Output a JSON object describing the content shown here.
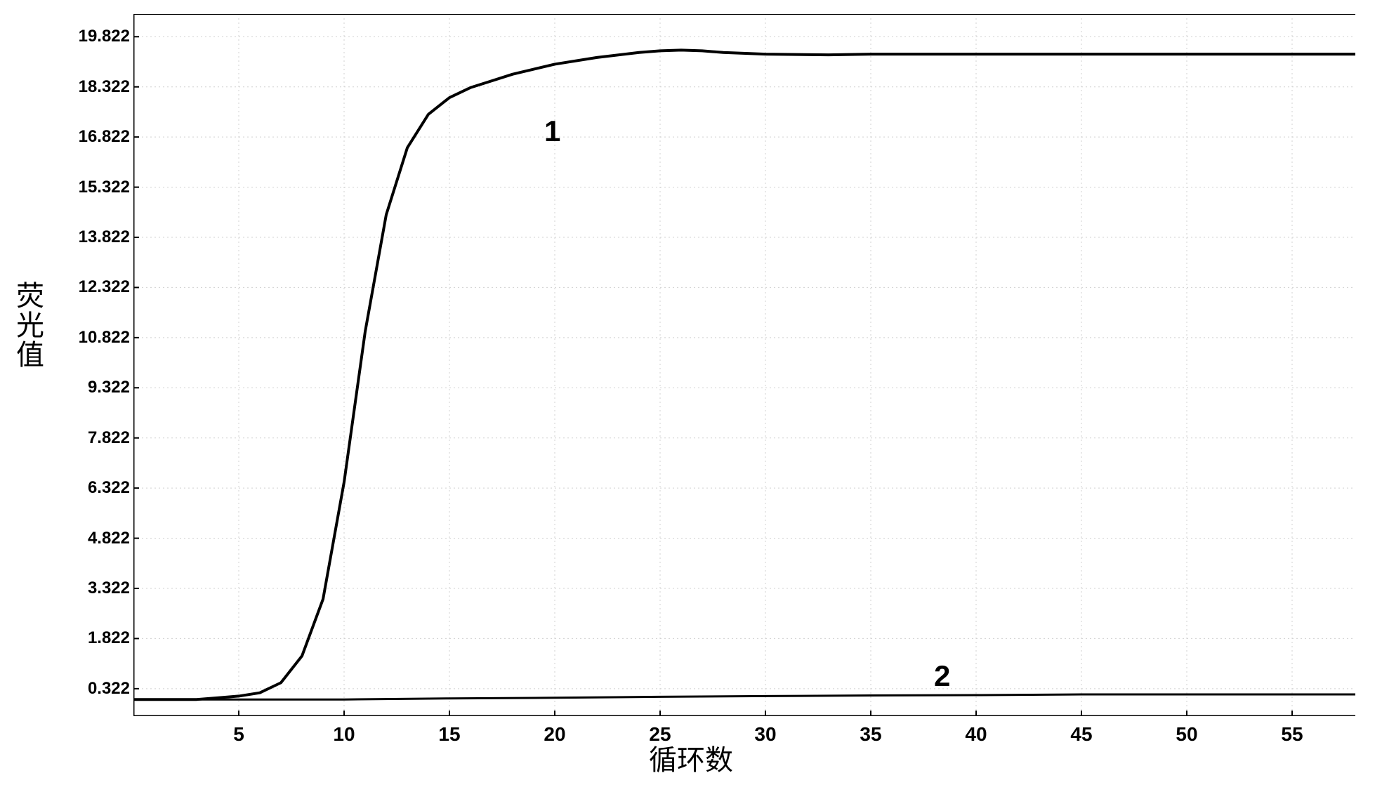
{
  "chart": {
    "type": "line",
    "background_color": "#ffffff",
    "axis_color": "#000000",
    "axis_line_width": 3,
    "y_axis_label": "荧光值",
    "x_axis_label": "循环数",
    "label_fontsize": 40,
    "tick_fontsize_y": 24,
    "tick_fontsize_x": 28,
    "xlim": [
      0,
      58
    ],
    "ylim": [
      -0.5,
      20.5
    ],
    "y_ticks": [
      0.322,
      1.822,
      3.322,
      4.822,
      6.322,
      7.822,
      9.322,
      10.822,
      12.322,
      13.822,
      15.322,
      16.822,
      18.322,
      19.822
    ],
    "y_tick_labels": [
      "0.322",
      "1.822",
      "3.322",
      "4.822",
      "6.322",
      "7.822",
      "9.322",
      "10.822",
      "12.322",
      "13.822",
      "15.322",
      "16.822",
      "18.322",
      "19.822"
    ],
    "x_ticks": [
      5,
      10,
      15,
      20,
      25,
      30,
      35,
      40,
      45,
      50,
      55
    ],
    "x_tick_labels": [
      "5",
      "10",
      "15",
      "20",
      "25",
      "30",
      "35",
      "40",
      "45",
      "50",
      "55"
    ],
    "grid_color": "#d0d0d0",
    "grid_on": true,
    "tick_mark_length": 8,
    "series": [
      {
        "name": "curve1",
        "label": "1",
        "label_x": 19.5,
        "label_y": 17.5,
        "color": "#000000",
        "line_width": 4,
        "x": [
          0,
          1,
          2,
          3,
          4,
          5,
          6,
          7,
          8,
          9,
          10,
          11,
          12,
          13,
          14,
          15,
          16,
          17,
          18,
          19,
          20,
          22,
          24,
          25,
          26,
          27,
          28,
          30,
          33,
          35,
          38,
          40,
          45,
          50,
          55,
          58
        ],
        "y": [
          0.0,
          0.0,
          0.0,
          0.0,
          0.05,
          0.1,
          0.2,
          0.5,
          1.3,
          3.0,
          6.5,
          11.0,
          14.5,
          16.5,
          17.5,
          18.0,
          18.3,
          18.5,
          18.7,
          18.85,
          19.0,
          19.2,
          19.35,
          19.4,
          19.42,
          19.4,
          19.35,
          19.3,
          19.28,
          19.3,
          19.3,
          19.3,
          19.3,
          19.3,
          19.3,
          19.3
        ]
      },
      {
        "name": "curve2",
        "label": "2",
        "label_x": 38,
        "label_y": 1.2,
        "color": "#000000",
        "line_width": 3,
        "x": [
          0,
          5,
          10,
          15,
          20,
          25,
          30,
          35,
          40,
          45,
          50,
          55,
          58
        ],
        "y": [
          0.0,
          0.0,
          0.0,
          0.03,
          0.05,
          0.08,
          0.1,
          0.12,
          0.13,
          0.15,
          0.15,
          0.15,
          0.15
        ]
      }
    ]
  }
}
